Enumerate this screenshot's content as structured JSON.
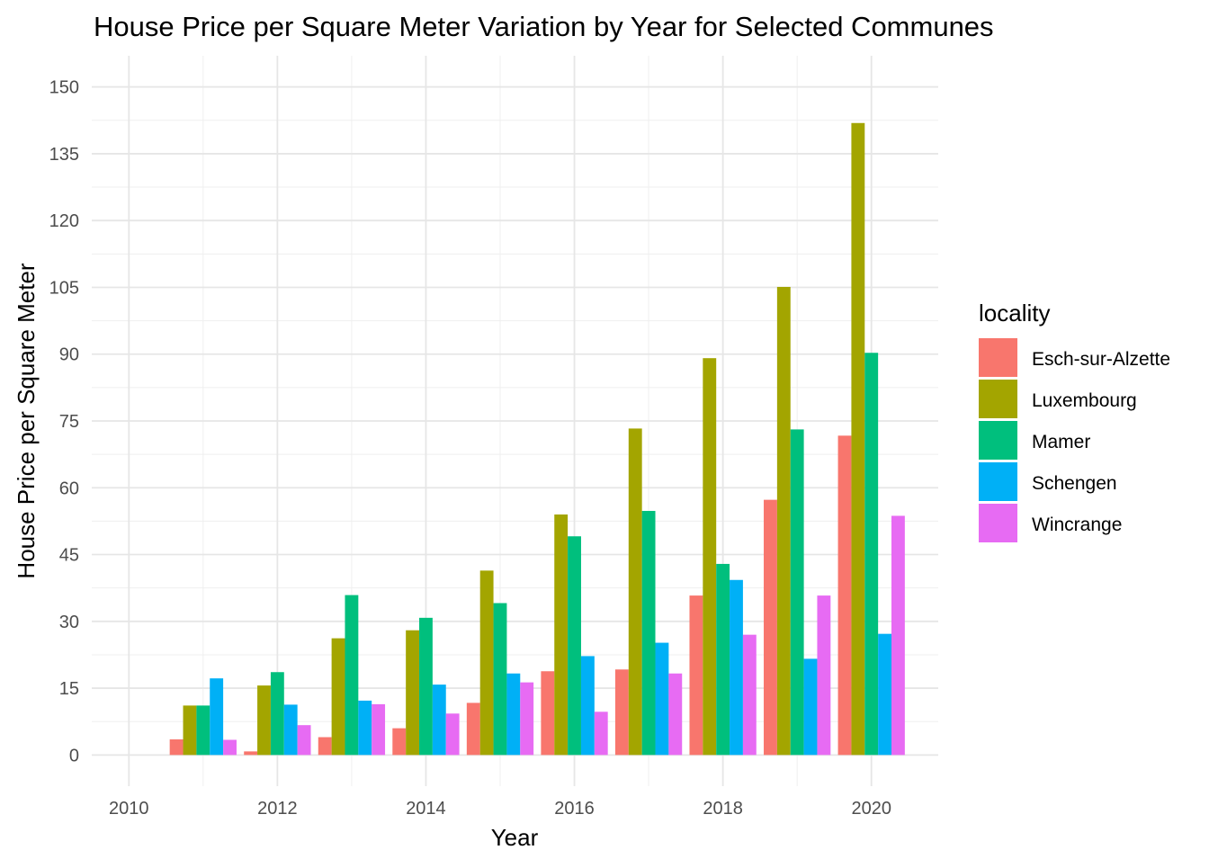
{
  "chart_data": {
    "type": "bar",
    "title": "House Price per Square Meter Variation by Year for Selected Communes",
    "xlabel": "Year",
    "ylabel": "House Price per Square Meter",
    "x": [
      2011,
      2012,
      2013,
      2014,
      2015,
      2016,
      2017,
      2018,
      2019,
      2020
    ],
    "xticks": [
      2010,
      2012,
      2014,
      2016,
      2018,
      2020
    ],
    "yticks": [
      0,
      15,
      30,
      45,
      60,
      75,
      90,
      105,
      120,
      135,
      150
    ],
    "xlim": [
      2009.5,
      2020.9
    ],
    "ylim": [
      -7,
      157
    ],
    "grid": true,
    "legend": {
      "title": "locality",
      "position": "right"
    },
    "series": [
      {
        "name": "Esch-sur-Alzette",
        "color": "#F8766D",
        "values": [
          3.5,
          0.8,
          4.0,
          6.0,
          11.7,
          18.8,
          19.2,
          35.8,
          57.3,
          71.7
        ]
      },
      {
        "name": "Luxembourg",
        "color": "#A3A500",
        "values": [
          11.1,
          15.6,
          26.2,
          28.0,
          41.4,
          54.0,
          73.3,
          89.1,
          105.1,
          141.9
        ]
      },
      {
        "name": "Mamer",
        "color": "#00BF7D",
        "values": [
          11.1,
          18.6,
          35.9,
          30.8,
          34.1,
          49.1,
          54.8,
          42.9,
          73.1,
          90.3
        ]
      },
      {
        "name": "Schengen",
        "color": "#00B0F6",
        "values": [
          17.2,
          11.3,
          12.2,
          15.8,
          18.3,
          22.2,
          25.2,
          39.3,
          21.6,
          27.2
        ]
      },
      {
        "name": "Wincrange",
        "color": "#E76BF3",
        "values": [
          3.4,
          6.7,
          11.4,
          9.3,
          16.3,
          9.7,
          18.3,
          27.0,
          35.8,
          53.7
        ]
      }
    ]
  }
}
